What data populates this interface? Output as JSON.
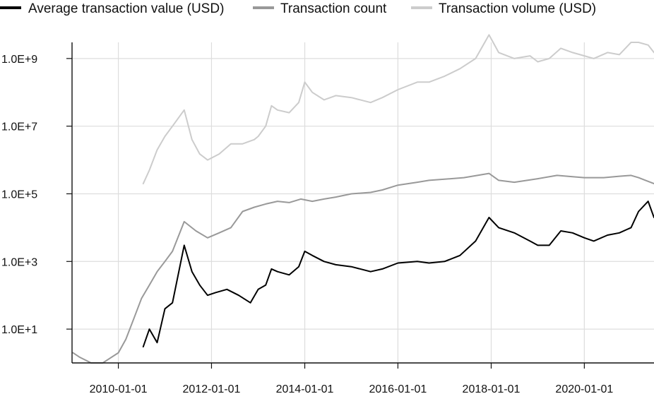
{
  "chart_data": {
    "type": "line",
    "y_scale": "log",
    "ylim": [
      1,
      3000000000
    ],
    "xlim": [
      "2009-01-03",
      "2021-06-30"
    ],
    "grid": true,
    "legend_position": "top",
    "x_ticks": [
      "2010-01-01",
      "2012-01-01",
      "2014-01-01",
      "2016-01-01",
      "2018-01-01",
      "2020-01-01"
    ],
    "y_ticks": [
      {
        "value": 10,
        "label": "1.0E+1"
      },
      {
        "value": 1000,
        "label": "1.0E+3"
      },
      {
        "value": 100000,
        "label": "1.0E+5"
      },
      {
        "value": 10000000,
        "label": "1.0E+7"
      },
      {
        "value": 1000000000,
        "label": "1.0E+9"
      }
    ],
    "series": [
      {
        "name": "Average transaction value (USD)",
        "color": "#000000",
        "x": [
          "2010-07-15",
          "2010-09-01",
          "2010-11-01",
          "2011-01-01",
          "2011-03-01",
          "2011-06-01",
          "2011-08-01",
          "2011-10-01",
          "2011-12-01",
          "2012-02-01",
          "2012-05-01",
          "2012-08-01",
          "2012-11-01",
          "2013-01-01",
          "2013-03-01",
          "2013-04-15",
          "2013-06-01",
          "2013-09-01",
          "2013-11-15",
          "2014-01-01",
          "2014-03-01",
          "2014-06-01",
          "2014-09-01",
          "2015-01-01",
          "2015-06-01",
          "2015-09-01",
          "2016-01-01",
          "2016-06-01",
          "2016-09-01",
          "2017-01-01",
          "2017-05-01",
          "2017-09-01",
          "2017-12-15",
          "2018-03-01",
          "2018-07-01",
          "2018-11-01",
          "2019-01-01",
          "2019-04-01",
          "2019-07-01",
          "2019-10-01",
          "2020-01-01",
          "2020-03-15",
          "2020-07-01",
          "2020-10-01",
          "2021-01-01",
          "2021-03-01",
          "2021-05-15",
          "2021-06-30"
        ],
        "values": [
          3,
          10,
          4,
          40,
          60,
          3000,
          500,
          200,
          100,
          120,
          150,
          100,
          60,
          150,
          200,
          600,
          500,
          400,
          700,
          2000,
          1500,
          1000,
          800,
          700,
          500,
          600,
          900,
          1000,
          900,
          1000,
          1500,
          4000,
          20000,
          10000,
          7000,
          4000,
          3000,
          3000,
          8000,
          7000,
          5000,
          4000,
          6000,
          7000,
          10000,
          30000,
          60000,
          20000
        ]
      },
      {
        "name": "Transaction count",
        "color": "#999999",
        "x": [
          "2009-01-10",
          "2009-03-01",
          "2009-06-01",
          "2009-09-01",
          "2010-01-01",
          "2010-03-01",
          "2010-05-01",
          "2010-07-01",
          "2010-09-01",
          "2010-11-01",
          "2011-01-01",
          "2011-03-01",
          "2011-06-01",
          "2011-09-01",
          "2011-12-01",
          "2012-03-01",
          "2012-06-01",
          "2012-09-01",
          "2012-12-01",
          "2013-03-01",
          "2013-06-01",
          "2013-09-01",
          "2013-12-01",
          "2014-03-01",
          "2014-06-01",
          "2014-09-01",
          "2015-01-01",
          "2015-06-01",
          "2015-09-01",
          "2016-01-01",
          "2016-06-01",
          "2016-09-01",
          "2017-01-01",
          "2017-06-01",
          "2017-12-15",
          "2018-03-01",
          "2018-07-01",
          "2019-01-01",
          "2019-06-01",
          "2019-10-01",
          "2020-01-01",
          "2020-06-01",
          "2020-10-01",
          "2021-01-01",
          "2021-03-01",
          "2021-06-30"
        ],
        "values": [
          2,
          1.5,
          1,
          1,
          2,
          5,
          20,
          80,
          200,
          500,
          1000,
          2000,
          15000,
          8000,
          5000,
          7000,
          10000,
          30000,
          40000,
          50000,
          60000,
          55000,
          70000,
          60000,
          70000,
          80000,
          100000,
          110000,
          130000,
          180000,
          220000,
          250000,
          270000,
          300000,
          400000,
          250000,
          220000,
          280000,
          350000,
          320000,
          300000,
          300000,
          330000,
          350000,
          300000,
          200000
        ]
      },
      {
        "name": "Transaction volume (USD)",
        "color": "#cccccc",
        "x": [
          "2010-07-15",
          "2010-09-01",
          "2010-11-01",
          "2011-01-01",
          "2011-03-01",
          "2011-06-01",
          "2011-08-01",
          "2011-10-01",
          "2011-12-01",
          "2012-03-01",
          "2012-06-01",
          "2012-09-01",
          "2012-12-01",
          "2013-01-01",
          "2013-03-01",
          "2013-04-15",
          "2013-06-01",
          "2013-09-01",
          "2013-11-15",
          "2014-01-01",
          "2014-03-01",
          "2014-06-01",
          "2014-09-01",
          "2015-01-01",
          "2015-06-01",
          "2015-09-01",
          "2016-01-01",
          "2016-06-01",
          "2016-09-01",
          "2017-01-01",
          "2017-05-01",
          "2017-09-01",
          "2017-12-15",
          "2018-03-01",
          "2018-07-01",
          "2018-11-01",
          "2019-01-01",
          "2019-04-01",
          "2019-07-01",
          "2019-10-01",
          "2020-01-01",
          "2020-03-15",
          "2020-07-01",
          "2020-10-01",
          "2021-01-01",
          "2021-03-01",
          "2021-05-15",
          "2021-06-30"
        ],
        "values": [
          200000,
          500000,
          2000000,
          5000000,
          10000000,
          30000000,
          4000000,
          1500000,
          1000000,
          1500000,
          3000000,
          3000000,
          4000000,
          5000000,
          10000000,
          40000000,
          30000000,
          25000000,
          50000000,
          200000000,
          100000000,
          60000000,
          80000000,
          70000000,
          50000000,
          70000000,
          120000000,
          200000000,
          200000000,
          300000000,
          500000000,
          1000000000,
          5000000000,
          1500000000,
          1000000000,
          1200000000,
          800000000,
          1000000000,
          2000000000,
          1500000000,
          1200000000,
          1000000000,
          1500000000,
          1300000000,
          3000000000,
          3000000000,
          2500000000,
          1500000000
        ]
      }
    ]
  }
}
